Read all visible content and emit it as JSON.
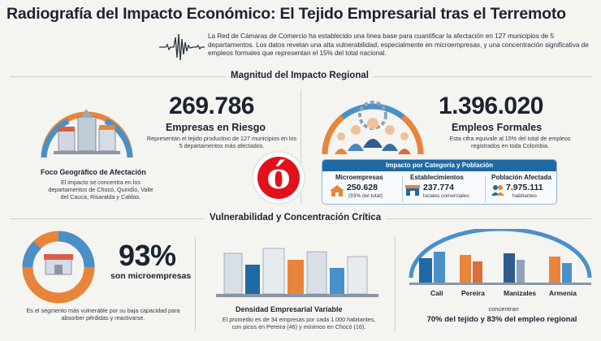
{
  "title": "Radiografía del Impacto Económico: El Tejido Empresarial tras el Terremoto",
  "intro": "La Red de Cámaras de Comercio ha establecido una línea base para cuantificar la afectación en 127 municipios de 5 departamentos. Los datos revelan una alta vulnerabilidad, especialmente en microempresas, y una concentración significativa de empleos formales que representan el 15% del total nacional.",
  "section1": {
    "heading": "Magnitud del Impacto Regional",
    "empresas": {
      "number": "269.786",
      "label": "Empresas en Riesgo",
      "desc": "Representan el tejido productivo de 127 municipios en los 5 departamentos más afectados."
    },
    "empleos": {
      "number": "1.396.020",
      "label": "Empleos Formales",
      "desc": "Esta cifra equivale al 15% del total de empleos registrados en toda Colombia."
    },
    "foco": {
      "title": "Foco Geográfico de Afectación",
      "desc": "El impacto se concentra en los departamentos de Chocó, Quindío, Valle del Cauca, Risaralda y Caldas."
    },
    "categoria": {
      "header": "Impacto por Categoría y Población",
      "items": [
        {
          "label": "Microempresas",
          "value": "250.628",
          "note": "(93% del total)"
        },
        {
          "label": "Establecimientos",
          "value": "237.774",
          "note": "locales comerciales"
        },
        {
          "label": "Población Afectada",
          "value": "7.975.111",
          "note": "habitantes"
        }
      ]
    },
    "logo_letter": "ó"
  },
  "section2": {
    "heading": "Vulnerabilidad y Concentración Crítica",
    "micro": {
      "percent": "93%",
      "label": "son microempresas",
      "desc": "Es el segmento más vulnerable por su baja capacidad para absorber pérdidas y reactivarse."
    },
    "densidad": {
      "title": "Densidad Empresarial Variable",
      "desc": "El promedio es de 34 empresas por cada 1.000 habitantes, con picos en Pereira (46) y mínimos en Chocó (16)."
    },
    "cities": {
      "names": [
        "Cali",
        "Pereira",
        "Manizales",
        "Armenia"
      ],
      "concentran": "concentran",
      "summary": "70% del tejido y 83% del empleo regional"
    }
  },
  "colors": {
    "accent_blue": "#1f6aa5",
    "accent_orange": "#e8853a",
    "brand_red": "#e1101b",
    "text_dark": "#1d2430"
  }
}
